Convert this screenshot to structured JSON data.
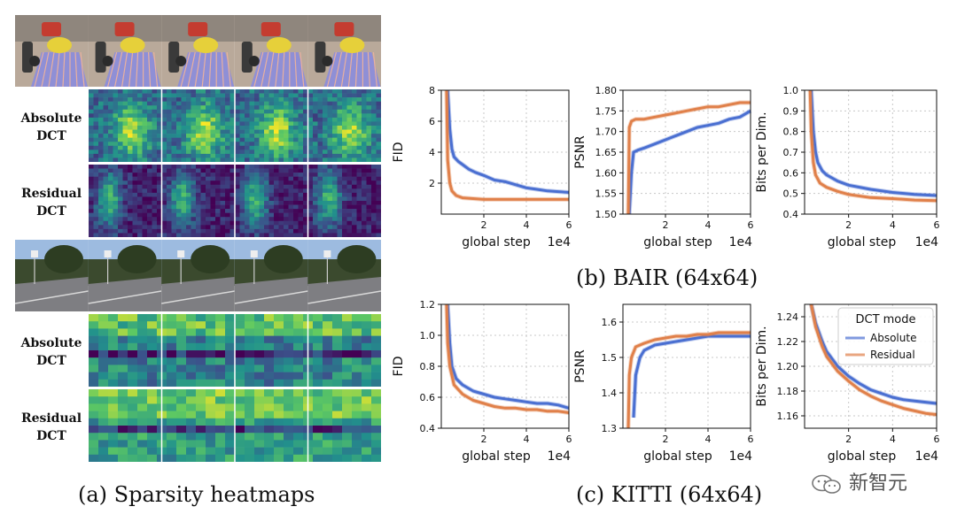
{
  "panel_a": {
    "caption": "(a) Sparsity heatmaps",
    "rows": [
      {
        "label_line1": "Absolute",
        "label_line2": "DCT"
      },
      {
        "label_line1": "Residual",
        "label_line2": "DCT"
      },
      {
        "label_line1": "Absolute",
        "label_line2": "DCT"
      },
      {
        "label_line1": "Residual",
        "label_line2": "DCT"
      }
    ]
  },
  "captions": {
    "bair": "(b) BAIR (64x64)",
    "kitti": "(c) KITTI (64x64)"
  },
  "legend": {
    "title": "DCT mode",
    "absolute": "Absolute",
    "residual": "Residual"
  },
  "colors": {
    "absolute": "#4a6fd1",
    "residual": "#e0804a",
    "grid": "#c8c8c8"
  },
  "watermark": "新智元",
  "chart_data": [
    {
      "id": "bair-fid",
      "type": "line",
      "dataset": "BAIR",
      "xlabel": "global step",
      "x_multiplier": "1e4",
      "ylabel": "FID",
      "xlim": [
        0,
        6
      ],
      "ylim": [
        0,
        8
      ],
      "xticks": [
        "2",
        "4",
        "6"
      ],
      "yticks": [
        "2",
        "4",
        "6",
        "8"
      ],
      "series": [
        {
          "name": "Absolute",
          "x": [
            0.3,
            0.4,
            0.5,
            0.6,
            0.8,
            1.0,
            1.3,
            1.6,
            2.0,
            2.5,
            3.0,
            3.5,
            4.0,
            4.5,
            5.0,
            5.5,
            6.0
          ],
          "y": [
            8.0,
            5.5,
            4.2,
            3.7,
            3.4,
            3.2,
            2.9,
            2.7,
            2.5,
            2.2,
            2.1,
            1.9,
            1.7,
            1.6,
            1.5,
            1.45,
            1.4
          ]
        },
        {
          "name": "Residual",
          "x": [
            0.25,
            0.3,
            0.4,
            0.5,
            0.7,
            1.0,
            1.5,
            2.0,
            3.0,
            4.0,
            5.0,
            6.0
          ],
          "y": [
            8.0,
            3.5,
            2.0,
            1.5,
            1.2,
            1.05,
            1.0,
            0.95,
            0.95,
            0.95,
            0.95,
            0.95
          ]
        }
      ]
    },
    {
      "id": "bair-psnr",
      "type": "line",
      "dataset": "BAIR",
      "xlabel": "global step",
      "x_multiplier": "1e4",
      "ylabel": "PSNR",
      "xlim": [
        0,
        6
      ],
      "ylim": [
        1.5,
        1.8
      ],
      "xticks": [
        "2",
        "4",
        "6"
      ],
      "yticks": [
        "1.50",
        "1.55",
        "1.60",
        "1.65",
        "1.70",
        "1.75",
        "1.80"
      ],
      "series": [
        {
          "name": "Absolute",
          "x": [
            0.3,
            0.4,
            0.5,
            0.7,
            1.0,
            1.5,
            2.0,
            2.5,
            3.0,
            3.5,
            4.0,
            4.5,
            5.0,
            5.5,
            6.0
          ],
          "y": [
            1.5,
            1.6,
            1.65,
            1.655,
            1.66,
            1.67,
            1.68,
            1.69,
            1.7,
            1.71,
            1.715,
            1.72,
            1.73,
            1.735,
            1.75
          ]
        },
        {
          "name": "Residual",
          "x": [
            0.25,
            0.3,
            0.4,
            0.6,
            1.0,
            1.5,
            2.0,
            2.5,
            3.0,
            3.5,
            4.0,
            4.5,
            5.0,
            5.5,
            6.0
          ],
          "y": [
            1.5,
            1.71,
            1.725,
            1.73,
            1.73,
            1.735,
            1.74,
            1.745,
            1.75,
            1.755,
            1.76,
            1.76,
            1.765,
            1.77,
            1.77
          ]
        }
      ]
    },
    {
      "id": "bair-bpd",
      "type": "line",
      "dataset": "BAIR",
      "xlabel": "global step",
      "x_multiplier": "1e4",
      "ylabel": "Bits per Dim.",
      "xlim": [
        0,
        6
      ],
      "ylim": [
        0.4,
        1.0
      ],
      "xticks": [
        "2",
        "4",
        "6"
      ],
      "yticks": [
        "0.4",
        "0.5",
        "0.6",
        "0.7",
        "0.8",
        "0.9",
        "1.0"
      ],
      "series": [
        {
          "name": "Absolute",
          "x": [
            0.3,
            0.4,
            0.5,
            0.6,
            0.8,
            1.0,
            1.5,
            2.0,
            3.0,
            4.0,
            5.0,
            6.0
          ],
          "y": [
            1.0,
            0.8,
            0.7,
            0.65,
            0.61,
            0.59,
            0.56,
            0.54,
            0.52,
            0.505,
            0.495,
            0.49
          ]
        },
        {
          "name": "Residual",
          "x": [
            0.25,
            0.3,
            0.4,
            0.5,
            0.7,
            1.0,
            1.5,
            2.0,
            3.0,
            4.0,
            5.0,
            6.0
          ],
          "y": [
            1.0,
            0.8,
            0.65,
            0.59,
            0.55,
            0.53,
            0.51,
            0.495,
            0.48,
            0.475,
            0.468,
            0.465
          ]
        }
      ]
    },
    {
      "id": "kitti-fid",
      "type": "line",
      "dataset": "KITTI",
      "xlabel": "global step",
      "x_multiplier": "1e4",
      "ylabel": "FID",
      "xlim": [
        0,
        6
      ],
      "ylim": [
        0.4,
        1.2
      ],
      "xticks": [
        "2",
        "4",
        "6"
      ],
      "yticks": [
        "0.4",
        "0.6",
        "0.8",
        "1.0",
        "1.2"
      ],
      "series": [
        {
          "name": "Absolute",
          "x": [
            0.3,
            0.4,
            0.5,
            0.7,
            1.0,
            1.5,
            2.0,
            2.5,
            3.0,
            3.5,
            4.0,
            4.5,
            5.0,
            5.5,
            6.0
          ],
          "y": [
            1.2,
            0.95,
            0.8,
            0.72,
            0.68,
            0.64,
            0.62,
            0.6,
            0.59,
            0.58,
            0.57,
            0.56,
            0.56,
            0.55,
            0.53
          ]
        },
        {
          "name": "Residual",
          "x": [
            0.25,
            0.3,
            0.4,
            0.6,
            1.0,
            1.5,
            2.0,
            2.5,
            3.0,
            3.5,
            4.0,
            4.5,
            5.0,
            5.5,
            6.0
          ],
          "y": [
            1.2,
            0.95,
            0.8,
            0.68,
            0.62,
            0.58,
            0.56,
            0.54,
            0.53,
            0.53,
            0.52,
            0.52,
            0.51,
            0.51,
            0.5
          ]
        }
      ]
    },
    {
      "id": "kitti-psnr",
      "type": "line",
      "dataset": "KITTI",
      "xlabel": "global step",
      "x_multiplier": "1e4",
      "ylabel": "PSNR",
      "xlim": [
        0,
        6
      ],
      "ylim": [
        1.3,
        1.65
      ],
      "xticks": [
        "2",
        "4",
        "6"
      ],
      "yticks": [
        "1.3",
        "1.4",
        "1.5",
        "1.6"
      ],
      "series": [
        {
          "name": "Absolute",
          "x": [
            0.5,
            0.6,
            0.8,
            1.0,
            1.5,
            2.0,
            2.5,
            3.0,
            3.5,
            4.0,
            4.5,
            5.0,
            5.5,
            6.0
          ],
          "y": [
            1.33,
            1.45,
            1.5,
            1.52,
            1.535,
            1.54,
            1.545,
            1.55,
            1.555,
            1.56,
            1.56,
            1.56,
            1.56,
            1.56
          ]
        },
        {
          "name": "Residual",
          "x": [
            0.25,
            0.3,
            0.4,
            0.6,
            1.0,
            1.5,
            2.0,
            2.5,
            3.0,
            3.5,
            4.0,
            4.5,
            5.0,
            5.5,
            6.0
          ],
          "y": [
            1.3,
            1.45,
            1.5,
            1.53,
            1.54,
            1.55,
            1.555,
            1.56,
            1.56,
            1.565,
            1.565,
            1.57,
            1.57,
            1.57,
            1.57
          ]
        }
      ]
    },
    {
      "id": "kitti-bpd",
      "type": "line",
      "dataset": "KITTI",
      "xlabel": "global step",
      "x_multiplier": "1e4",
      "ylabel": "Bits per Dim.",
      "xlim": [
        0,
        6
      ],
      "ylim": [
        1.15,
        1.25
      ],
      "xticks": [
        "2",
        "4",
        "6"
      ],
      "yticks": [
        "1.16",
        "1.18",
        "1.20",
        "1.22",
        "1.24"
      ],
      "series": [
        {
          "name": "Absolute",
          "x": [
            0.3,
            0.5,
            0.8,
            1.0,
            1.5,
            2.0,
            2.5,
            3.0,
            3.5,
            4.0,
            4.5,
            5.0,
            5.5,
            6.0
          ],
          "y": [
            1.25,
            1.235,
            1.22,
            1.212,
            1.2,
            1.192,
            1.186,
            1.181,
            1.178,
            1.175,
            1.173,
            1.172,
            1.171,
            1.17
          ]
        },
        {
          "name": "Residual",
          "x": [
            0.3,
            0.5,
            0.8,
            1.0,
            1.5,
            2.0,
            2.5,
            3.0,
            3.5,
            4.0,
            4.5,
            5.0,
            5.5,
            6.0
          ],
          "y": [
            1.25,
            1.232,
            1.216,
            1.208,
            1.196,
            1.188,
            1.181,
            1.176,
            1.172,
            1.169,
            1.166,
            1.164,
            1.162,
            1.161
          ]
        }
      ],
      "legend": true
    }
  ]
}
